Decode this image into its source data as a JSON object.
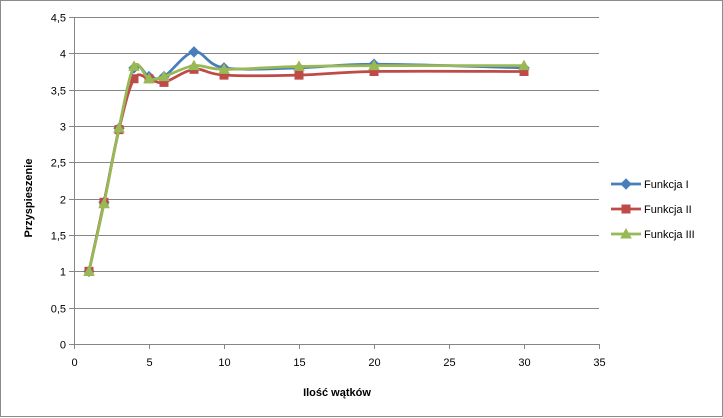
{
  "chart_data": {
    "type": "line",
    "title": "",
    "xlabel": "Ilość wątków",
    "ylabel": "Przyspieszenie",
    "xlim": [
      0,
      35
    ],
    "ylim": [
      0,
      4.5
    ],
    "xticks": [
      0,
      5,
      10,
      15,
      20,
      25,
      30,
      35
    ],
    "yticks": [
      0,
      0.5,
      1,
      1.5,
      2,
      2.5,
      3,
      3.5,
      4,
      4.5
    ],
    "xtick_labels": [
      "0",
      "5",
      "10",
      "15",
      "20",
      "25",
      "30",
      "35"
    ],
    "ytick_labels": [
      "0",
      "0,5",
      "1",
      "1,5",
      "2",
      "2,5",
      "3",
      "3,5",
      "4",
      "4,5"
    ],
    "grid": "horizontal",
    "legend_position": "right",
    "series": [
      {
        "name": "Funkcja I",
        "color": "#4a7ebb",
        "marker": "diamond",
        "x": [
          1,
          2,
          3,
          4,
          5,
          6,
          8,
          10,
          15,
          20,
          30
        ],
        "y": [
          1.0,
          1.95,
          2.97,
          3.8,
          3.68,
          3.68,
          4.02,
          3.8,
          3.8,
          3.85,
          3.8
        ]
      },
      {
        "name": "Funkcja II",
        "color": "#be4b48",
        "marker": "square",
        "x": [
          1,
          2,
          3,
          4,
          5,
          6,
          8,
          10,
          15,
          20,
          30
        ],
        "y": [
          1.0,
          1.95,
          2.95,
          3.65,
          3.65,
          3.6,
          3.78,
          3.7,
          3.7,
          3.75,
          3.75
        ]
      },
      {
        "name": "Funkcja III",
        "color": "#98b954",
        "marker": "triangle",
        "x": [
          1,
          2,
          3,
          4,
          5,
          6,
          8,
          10,
          15,
          20,
          30
        ],
        "y": [
          1.0,
          1.93,
          2.97,
          3.82,
          3.65,
          3.68,
          3.83,
          3.78,
          3.82,
          3.83,
          3.83
        ]
      }
    ]
  }
}
